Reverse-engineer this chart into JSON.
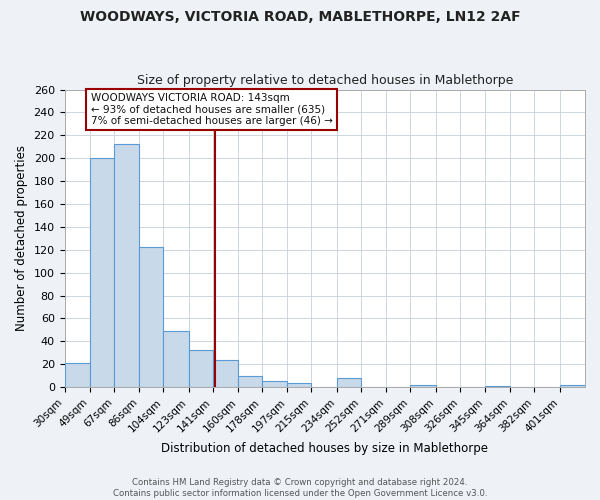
{
  "title": "WOODWAYS, VICTORIA ROAD, MABLETHORPE, LN12 2AF",
  "subtitle": "Size of property relative to detached houses in Mablethorpe",
  "xlabel": "Distribution of detached houses by size in Mablethorpe",
  "ylabel": "Number of detached properties",
  "bar_color": "#c8d9ea",
  "bar_edge_color": "#5b9bd5",
  "background_color": "#eef2f7",
  "plot_bg_color": "#ffffff",
  "grid_color": "#c5d0dc",
  "bin_labels": [
    "30sqm",
    "49sqm",
    "67sqm",
    "86sqm",
    "104sqm",
    "123sqm",
    "141sqm",
    "160sqm",
    "178sqm",
    "197sqm",
    "215sqm",
    "234sqm",
    "252sqm",
    "271sqm",
    "289sqm",
    "308sqm",
    "326sqm",
    "345sqm",
    "364sqm",
    "382sqm",
    "401sqm"
  ],
  "bin_values": [
    21,
    200,
    212,
    122,
    49,
    32,
    24,
    10,
    5,
    4,
    0,
    8,
    0,
    0,
    2,
    0,
    0,
    1,
    0,
    0,
    2
  ],
  "property_line_x": 143,
  "bin_edges_numeric": [
    30,
    49,
    67,
    86,
    104,
    123,
    141,
    160,
    178,
    197,
    215,
    234,
    252,
    271,
    289,
    308,
    326,
    345,
    364,
    382,
    401
  ],
  "annotation_title": "WOODWAYS VICTORIA ROAD: 143sqm",
  "annotation_line1": "← 93% of detached houses are smaller (635)",
  "annotation_line2": "7% of semi-detached houses are larger (46) →",
  "footer1": "Contains HM Land Registry data © Crown copyright and database right 2024.",
  "footer2": "Contains public sector information licensed under the Open Government Licence v3.0.",
  "ylim": [
    0,
    260
  ],
  "yticks": [
    0,
    20,
    40,
    60,
    80,
    100,
    120,
    140,
    160,
    180,
    200,
    220,
    240,
    260
  ],
  "red_line_color": "#990000",
  "annotation_box_color": "#ffffff",
  "annotation_box_edge": "#990000"
}
